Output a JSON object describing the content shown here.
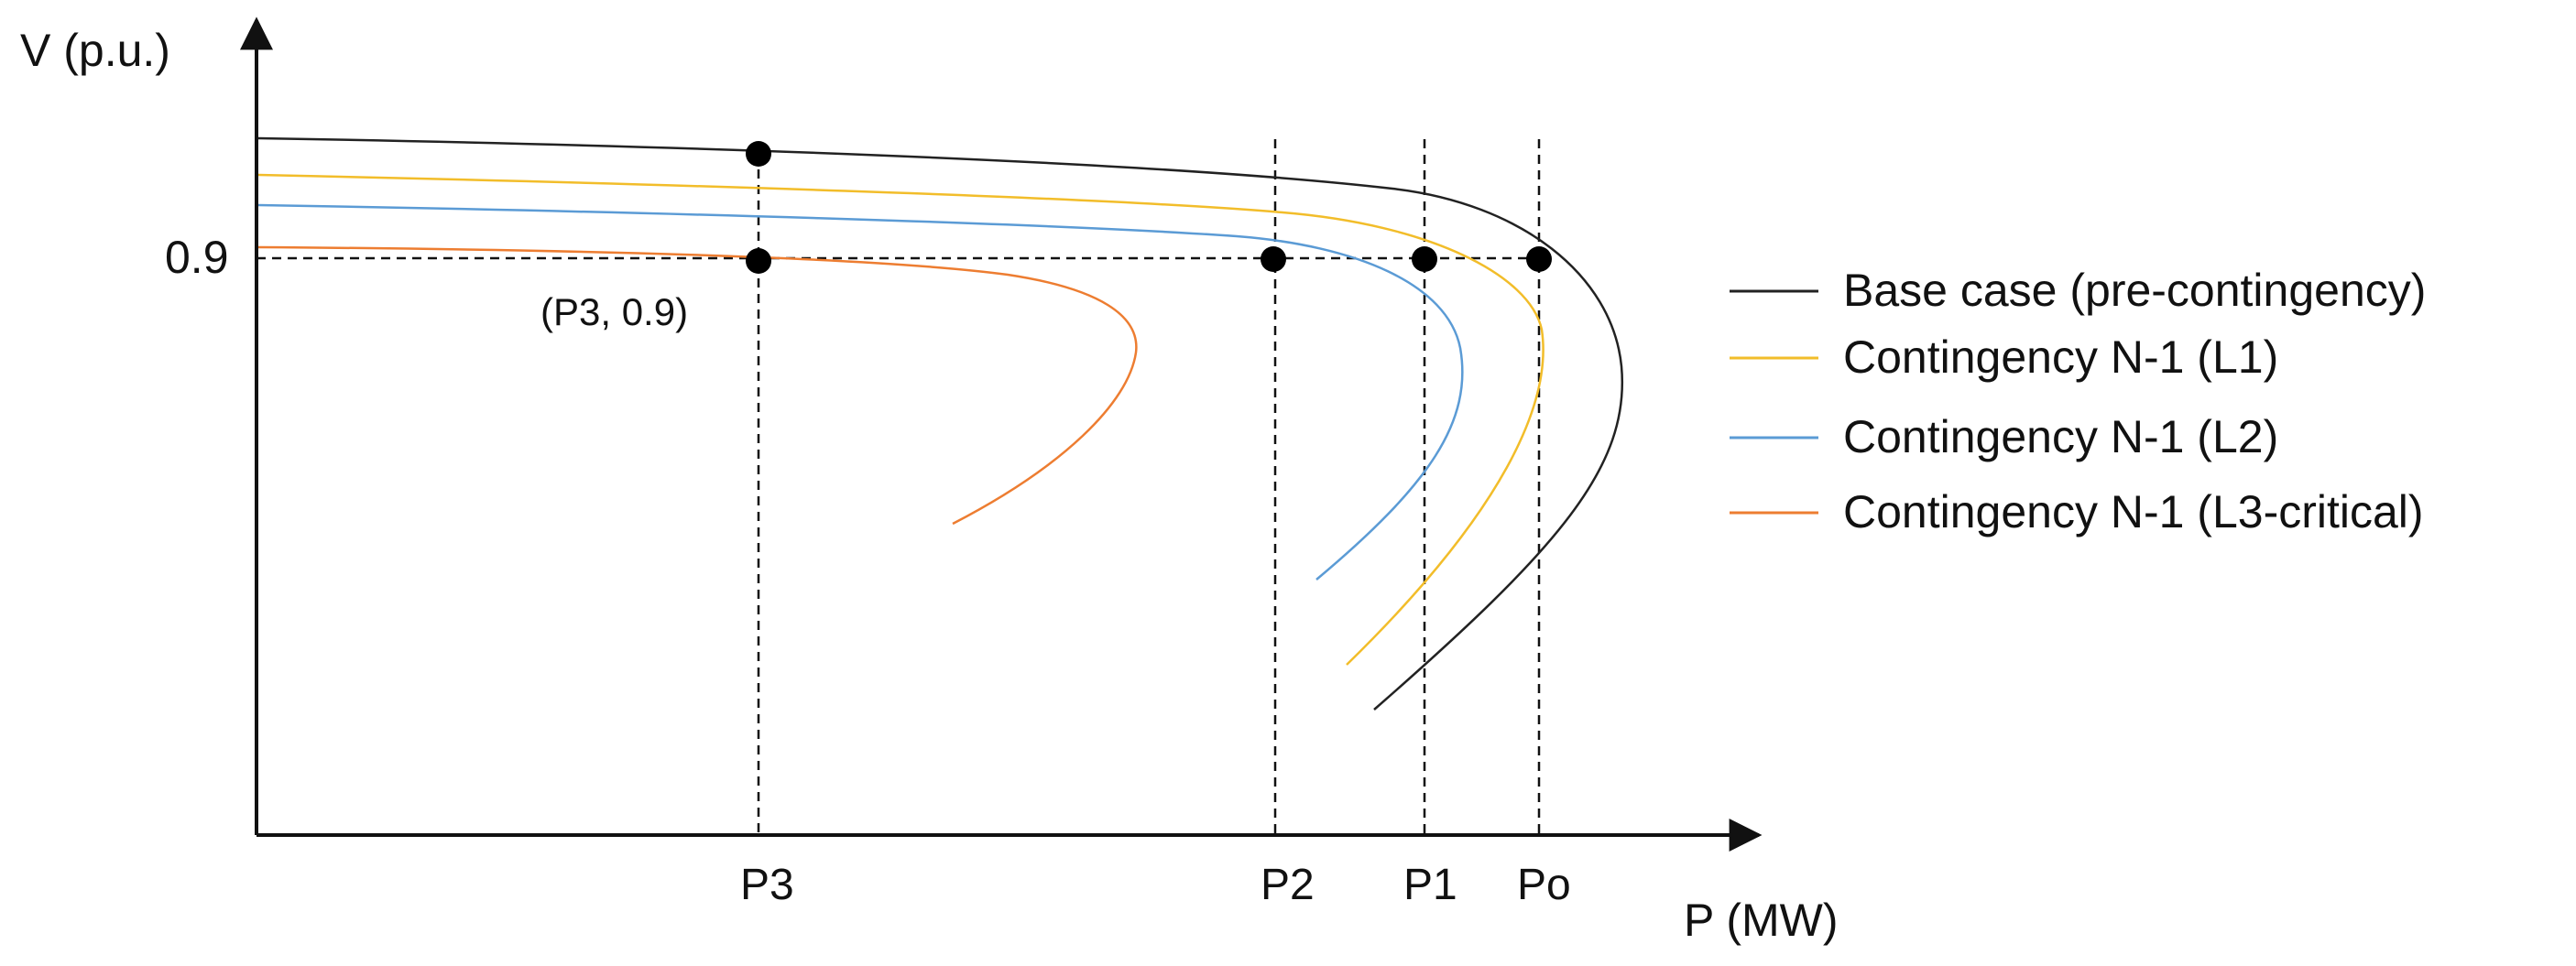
{
  "axes": {
    "y_label": "V (p.u.)",
    "x_label": "P (MW)",
    "y_tick": "0.9",
    "x_ticks": [
      "P3",
      "P2",
      "P1",
      "Po"
    ]
  },
  "annotation": "(P3, 0.9)",
  "legend": [
    {
      "label": "Base case (pre-contingency)",
      "color": "#222222"
    },
    {
      "label": "Contingency N-1 (L1)",
      "color": "#f2bd2a"
    },
    {
      "label": "Contingency N-1 (L2)",
      "color": "#5b9bd5"
    },
    {
      "label": "Contingency N-1 (L3-critical)",
      "color": "#ed7d31"
    }
  ],
  "markers": [
    "P3 on base case",
    "P3 at 0.9",
    "P2 at 0.9",
    "P1 at 0.9",
    "Po at 0.9"
  ]
}
